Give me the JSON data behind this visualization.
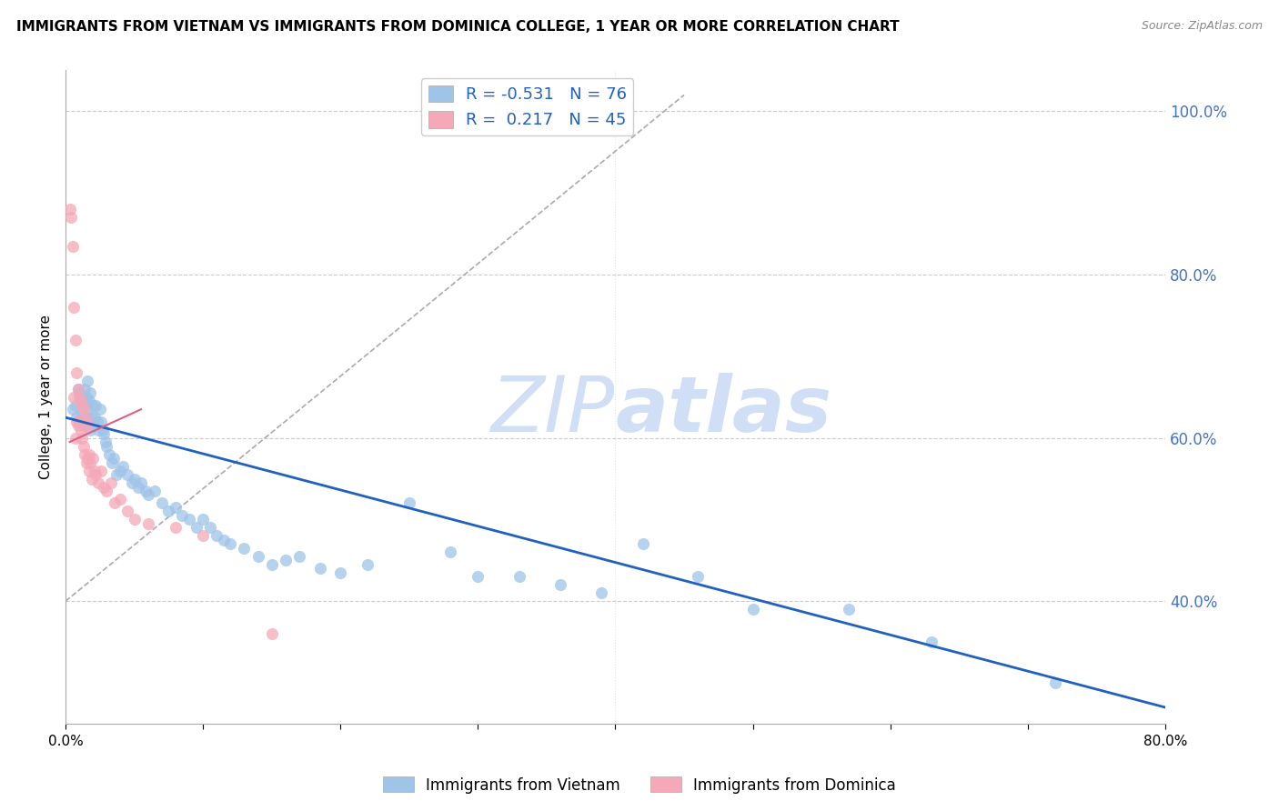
{
  "title": "IMMIGRANTS FROM VIETNAM VS IMMIGRANTS FROM DOMINICA COLLEGE, 1 YEAR OR MORE CORRELATION CHART",
  "source": "Source: ZipAtlas.com",
  "ylabel": "College, 1 year or more",
  "xlim": [
    0.0,
    0.8
  ],
  "ylim": [
    0.25,
    1.05
  ],
  "yticks_right": [
    0.4,
    0.6,
    0.8,
    1.0
  ],
  "ytick_labels_right": [
    "40.0%",
    "60.0%",
    "80.0%",
    "100.0%"
  ],
  "right_tick_color": "#4472C4",
  "legend_vietnam": "Immigrants from Vietnam",
  "legend_dominica": "Immigrants from Dominica",
  "R_vietnam": -0.531,
  "N_vietnam": 76,
  "R_dominica": 0.217,
  "N_dominica": 45,
  "blue_color": "#9EC4E8",
  "pink_color": "#F4A8B8",
  "blue_line_color": "#2060C0",
  "watermark_color": "#D0DFF5",
  "figsize": [
    14.06,
    8.92
  ],
  "dpi": 100,
  "vietnam_x": [
    0.005,
    0.007,
    0.008,
    0.009,
    0.01,
    0.01,
    0.011,
    0.012,
    0.013,
    0.013,
    0.014,
    0.015,
    0.015,
    0.016,
    0.016,
    0.017,
    0.018,
    0.018,
    0.019,
    0.02,
    0.02,
    0.021,
    0.022,
    0.023,
    0.024,
    0.025,
    0.026,
    0.027,
    0.028,
    0.029,
    0.03,
    0.032,
    0.034,
    0.035,
    0.037,
    0.04,
    0.042,
    0.045,
    0.048,
    0.05,
    0.053,
    0.055,
    0.058,
    0.06,
    0.065,
    0.07,
    0.075,
    0.08,
    0.085,
    0.09,
    0.095,
    0.1,
    0.105,
    0.11,
    0.115,
    0.12,
    0.13,
    0.14,
    0.15,
    0.16,
    0.17,
    0.185,
    0.2,
    0.22,
    0.25,
    0.28,
    0.3,
    0.33,
    0.36,
    0.39,
    0.42,
    0.46,
    0.5,
    0.57,
    0.63,
    0.72
  ],
  "vietnam_y": [
    0.635,
    0.64,
    0.625,
    0.66,
    0.62,
    0.655,
    0.645,
    0.63,
    0.65,
    0.615,
    0.66,
    0.65,
    0.625,
    0.67,
    0.635,
    0.645,
    0.655,
    0.61,
    0.625,
    0.64,
    0.615,
    0.625,
    0.64,
    0.62,
    0.61,
    0.635,
    0.62,
    0.61,
    0.605,
    0.595,
    0.59,
    0.58,
    0.57,
    0.575,
    0.555,
    0.56,
    0.565,
    0.555,
    0.545,
    0.55,
    0.54,
    0.545,
    0.535,
    0.53,
    0.535,
    0.52,
    0.51,
    0.515,
    0.505,
    0.5,
    0.49,
    0.5,
    0.49,
    0.48,
    0.475,
    0.47,
    0.465,
    0.455,
    0.445,
    0.45,
    0.455,
    0.44,
    0.435,
    0.445,
    0.52,
    0.46,
    0.43,
    0.43,
    0.42,
    0.41,
    0.47,
    0.43,
    0.39,
    0.39,
    0.35,
    0.3
  ],
  "dominica_x": [
    0.003,
    0.004,
    0.005,
    0.006,
    0.006,
    0.007,
    0.007,
    0.008,
    0.008,
    0.009,
    0.009,
    0.01,
    0.01,
    0.011,
    0.011,
    0.012,
    0.012,
    0.013,
    0.013,
    0.014,
    0.014,
    0.015,
    0.015,
    0.016,
    0.016,
    0.017,
    0.017,
    0.018,
    0.019,
    0.02,
    0.021,
    0.022,
    0.024,
    0.026,
    0.028,
    0.03,
    0.033,
    0.036,
    0.04,
    0.045,
    0.05,
    0.06,
    0.08,
    0.1,
    0.15
  ],
  "dominica_y": [
    0.88,
    0.87,
    0.835,
    0.76,
    0.65,
    0.72,
    0.6,
    0.68,
    0.62,
    0.66,
    0.615,
    0.65,
    0.62,
    0.645,
    0.61,
    0.64,
    0.6,
    0.635,
    0.59,
    0.625,
    0.58,
    0.615,
    0.57,
    0.62,
    0.575,
    0.58,
    0.56,
    0.57,
    0.55,
    0.575,
    0.56,
    0.555,
    0.545,
    0.56,
    0.54,
    0.535,
    0.545,
    0.52,
    0.525,
    0.51,
    0.5,
    0.495,
    0.49,
    0.48,
    0.36
  ]
}
